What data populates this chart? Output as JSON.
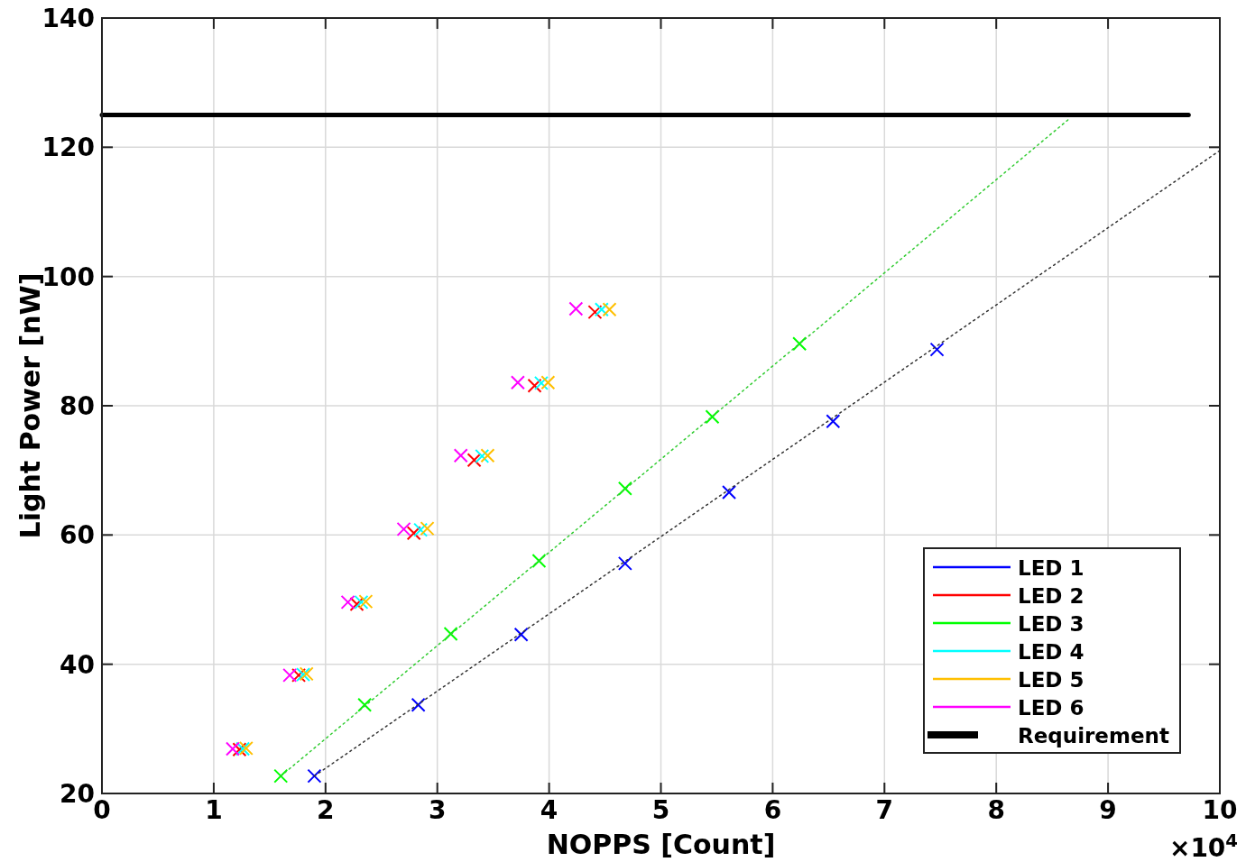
{
  "chart_data": {
    "type": "scatter",
    "xlabel": "NOPPS  [Count]",
    "ylabel": "Light Power  [nW]",
    "annotations": [
      "×10$^{4}$"
    ],
    "xlim": [
      0,
      10
    ],
    "xticks": [
      0,
      1,
      2,
      3,
      4,
      5,
      6,
      7,
      8,
      9,
      10
    ],
    "ylim": [
      20,
      140
    ],
    "yticks": [
      20,
      40,
      60,
      80,
      100,
      120,
      140
    ],
    "grid": true,
    "legend": "bottom right",
    "series": [
      {
        "name": "LED 1",
        "marker": "cross",
        "color": "#0000ff",
        "x": [
          1.9,
          2.83,
          3.75,
          4.68,
          5.61,
          6.54,
          7.47
        ],
        "values": [
          22.7,
          33.7,
          44.6,
          55.6,
          66.6,
          77.6,
          88.7
        ]
      },
      {
        "name": "LED 2",
        "marker": "cross",
        "color": "#ff0000",
        "x": [
          1.23,
          1.76,
          2.28,
          2.79,
          3.33,
          3.87,
          4.41
        ],
        "values": [
          26.8,
          38.3,
          49.3,
          60.3,
          71.6,
          83.1,
          94.5
        ]
      },
      {
        "name": "LED 3",
        "marker": "cross",
        "color": "#00ff00",
        "x": [
          1.6,
          2.35,
          3.12,
          3.91,
          4.68,
          5.46,
          6.24
        ],
        "values": [
          22.7,
          33.7,
          44.7,
          56.0,
          67.2,
          78.3,
          89.6
        ]
      },
      {
        "name": "LED 4",
        "marker": "cross",
        "color": "#00ffff",
        "x": [
          1.26,
          1.8,
          2.32,
          2.85,
          3.4,
          3.93,
          4.47
        ],
        "values": [
          26.9,
          38.4,
          49.6,
          60.8,
          72.2,
          83.5,
          94.9
        ]
      },
      {
        "name": "LED 5",
        "marker": "cross",
        "color": "#ffbf00",
        "x": [
          1.29,
          1.83,
          2.36,
          2.91,
          3.45,
          3.99,
          4.54
        ],
        "values": [
          27.0,
          38.5,
          49.7,
          61.0,
          72.3,
          83.6,
          94.9
        ]
      },
      {
        "name": "LED 6",
        "marker": "cross",
        "color": "#ff00ff",
        "x": [
          1.17,
          1.68,
          2.2,
          2.7,
          3.21,
          3.72,
          4.24
        ],
        "values": [
          26.9,
          38.3,
          49.6,
          60.9,
          72.3,
          83.6,
          95.0
        ]
      },
      {
        "name": "Requirement",
        "type": "line",
        "color": "#000000",
        "x": [
          0,
          9.72
        ],
        "values": [
          125,
          125
        ]
      },
      {
        "type": "line",
        "color": "#33cc33",
        "line_style": "dotted",
        "x": [
          1.6,
          8.66
        ],
        "values": [
          22.7,
          124.5
        ]
      },
      {
        "type": "line",
        "color": "#333333",
        "line_style": "dotted",
        "x": [
          1.9,
          10
        ],
        "values": [
          22.7,
          119.5
        ]
      }
    ]
  }
}
